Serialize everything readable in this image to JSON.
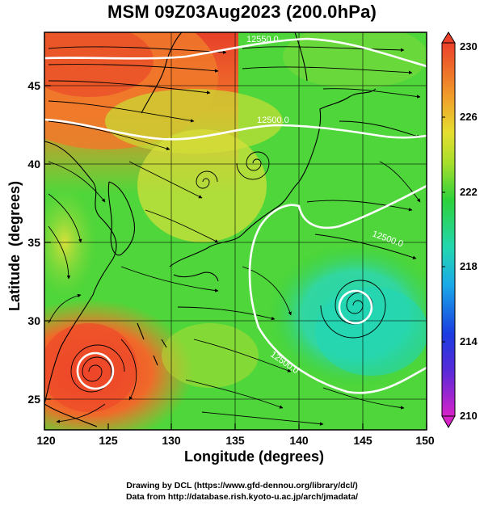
{
  "title": "MSM 09Z03Aug2023 (200.0hPa)",
  "axes": {
    "xlabel": "Longitude (degrees)",
    "ylabel": "Latitude  (degrees)",
    "xticks": [
      "120",
      "125",
      "130",
      "135",
      "140",
      "145",
      "150"
    ],
    "yticks": [
      "25",
      "30",
      "35",
      "40",
      "45"
    ]
  },
  "colorbar": {
    "ticks": [
      "210",
      "214",
      "218",
      "222",
      "226",
      "230"
    ],
    "min": 210,
    "max": 230
  },
  "contour_labels": [
    "12550.0",
    "12500.0",
    "12500.0",
    "12500.0"
  ],
  "credits": {
    "line1": "Drawing by DCL (https://www.gfd-dennou.org/library/dcl/)",
    "line2": "Data from http://database.rish.kyoto-u.ac.jp/arch/jmadata/"
  },
  "colors": {
    "warm": "#e8402a",
    "orange": "#f08a2a",
    "yellow": "#e2e23a",
    "green": "#3ed23a",
    "cyan": "#22d6b0"
  },
  "chart_data": {
    "type": "heatmap",
    "variable": "temperature with streamlines and height contours",
    "xlim": [
      120,
      150
    ],
    "ylim": [
      22.5,
      48
    ],
    "colorbar_range": [
      210,
      230
    ],
    "contours": [
      {
        "label": "12550.0",
        "lat_approx": 46.5
      },
      {
        "label": "12500.0",
        "lat_approx": 42.5
      },
      {
        "label": "12500.0",
        "lat_approx": 35
      },
      {
        "label": "12500.0",
        "lat_approx": 26
      }
    ],
    "vortices": [
      {
        "lon": 124,
        "lat": 26.5
      },
      {
        "lon": 144.5,
        "lat": 31
      },
      {
        "lon": 137,
        "lat": 40
      }
    ]
  }
}
